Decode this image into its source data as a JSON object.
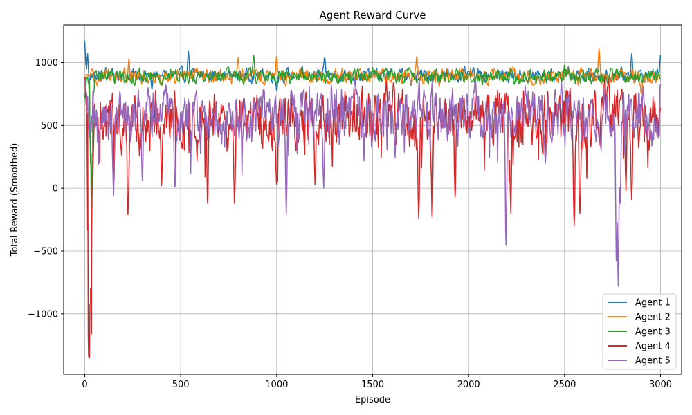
{
  "chart_data": {
    "type": "line",
    "title": "Agent Reward Curve",
    "xlabel": "Episode",
    "ylabel": "Total Reward (Smoothed)",
    "xlim": [
      -110,
      3110
    ],
    "ylim": [
      -1480,
      1300
    ],
    "xticks": [
      0,
      500,
      1000,
      1500,
      2000,
      2500,
      3000
    ],
    "yticks": [
      -1000,
      -500,
      0,
      500,
      1000
    ],
    "ytick_labels": [
      "−1000",
      "−500",
      "0",
      "500",
      "1000"
    ],
    "grid": true,
    "legend_position": "lower-right",
    "x_range": [
      0,
      3000
    ],
    "series": [
      {
        "name": "Agent 1",
        "color": "#1f77b4",
        "base": 900,
        "amplitude": 55,
        "values": [
          [
            0,
            1170
          ],
          [
            10,
            950
          ],
          [
            15,
            1070
          ],
          [
            25,
            860
          ],
          [
            60,
            870
          ],
          [
            110,
            960
          ],
          [
            200,
            920
          ],
          [
            300,
            850
          ],
          [
            350,
            790
          ],
          [
            400,
            900
          ],
          [
            540,
            1090
          ],
          [
            700,
            880
          ],
          [
            1000,
            780
          ],
          [
            1250,
            1040
          ],
          [
            1500,
            900
          ],
          [
            1700,
            820
          ],
          [
            2000,
            930
          ],
          [
            2300,
            860
          ],
          [
            2500,
            940
          ],
          [
            2850,
            1070
          ],
          [
            3000,
            1060
          ]
        ]
      },
      {
        "name": "Agent 2",
        "color": "#ff7f0e",
        "base": 890,
        "amplitude": 65,
        "values": [
          [
            0,
            820
          ],
          [
            20,
            900
          ],
          [
            50,
            840
          ],
          [
            230,
            1030
          ],
          [
            500,
            900
          ],
          [
            800,
            1040
          ],
          [
            1000,
            1050
          ],
          [
            1500,
            900
          ],
          [
            1730,
            1050
          ],
          [
            2000,
            880
          ],
          [
            2500,
            900
          ],
          [
            2680,
            1110
          ],
          [
            2900,
            750
          ],
          [
            3000,
            900
          ]
        ]
      },
      {
        "name": "Agent 3",
        "color": "#2ca02c",
        "base": 890,
        "amplitude": 60,
        "values": [
          [
            0,
            720
          ],
          [
            25,
            860
          ],
          [
            30,
            500
          ],
          [
            35,
            -150
          ],
          [
            40,
            40
          ],
          [
            45,
            760
          ],
          [
            100,
            900
          ],
          [
            500,
            930
          ],
          [
            880,
            1060
          ],
          [
            1200,
            900
          ],
          [
            1500,
            960
          ],
          [
            2000,
            900
          ],
          [
            2500,
            980
          ],
          [
            3000,
            870
          ]
        ]
      },
      {
        "name": "Agent 4",
        "color": "#d62728",
        "base": 560,
        "amplitude": 240,
        "values": [
          [
            0,
            880
          ],
          [
            15,
            600
          ],
          [
            20,
            -1340
          ],
          [
            25,
            -1350
          ],
          [
            30,
            -800
          ],
          [
            35,
            -1160
          ],
          [
            40,
            100
          ],
          [
            60,
            500
          ],
          [
            225,
            -210
          ],
          [
            400,
            20
          ],
          [
            640,
            -120
          ],
          [
            780,
            -120
          ],
          [
            1000,
            30
          ],
          [
            1200,
            30
          ],
          [
            1740,
            -240
          ],
          [
            1810,
            -230
          ],
          [
            1930,
            -70
          ],
          [
            2220,
            -200
          ],
          [
            2550,
            -300
          ],
          [
            2580,
            -200
          ],
          [
            2820,
            -20
          ],
          [
            2850,
            -90
          ],
          [
            3000,
            640
          ]
        ]
      },
      {
        "name": "Agent 5",
        "color": "#9467bd",
        "base": 580,
        "amplitude": 230,
        "values": [
          [
            0,
            860
          ],
          [
            30,
            500
          ],
          [
            150,
            -60
          ],
          [
            300,
            60
          ],
          [
            470,
            10
          ],
          [
            1050,
            -210
          ],
          [
            1245,
            0
          ],
          [
            1500,
            600
          ],
          [
            2000,
            500
          ],
          [
            2195,
            -450
          ],
          [
            2400,
            200
          ],
          [
            2770,
            -580
          ],
          [
            2780,
            -780
          ],
          [
            2790,
            -120
          ],
          [
            3000,
            830
          ]
        ]
      }
    ]
  }
}
